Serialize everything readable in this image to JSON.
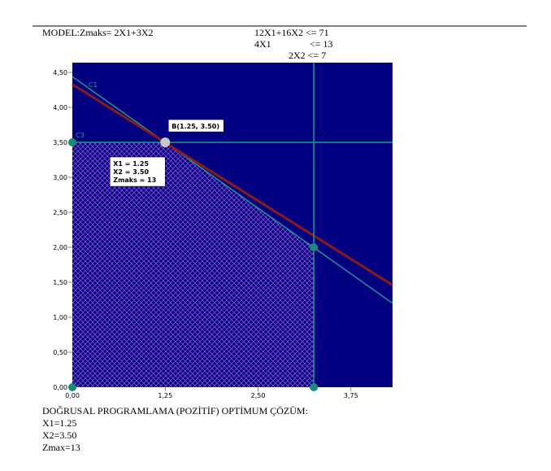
{
  "header": {
    "model": "MODEL:",
    "objective": "Zmaks= 2X1+3X2",
    "constraints": [
      "12X1+16X2 <= 71",
      "4X1",
      "<= 13",
      "2X2 <= 7"
    ]
  },
  "chart_data": {
    "type": "line",
    "xlim": [
      0,
      4.31
    ],
    "ylim": [
      0,
      4.64
    ],
    "xticks": [
      {
        "value": 0,
        "label": "0,00"
      },
      {
        "value": 1.25,
        "label": "1,25"
      },
      {
        "value": 2.5,
        "label": "2,50"
      },
      {
        "value": 3.75,
        "label": "3,75"
      }
    ],
    "yticks": [
      {
        "value": 0,
        "label": "0,00"
      },
      {
        "value": 0.5,
        "label": "0,50"
      },
      {
        "value": 1,
        "label": "1,00"
      },
      {
        "value": 1.5,
        "label": "1,50"
      },
      {
        "value": 2,
        "label": "2,00"
      },
      {
        "value": 2.5,
        "label": "2,50"
      },
      {
        "value": 3,
        "label": "3,00"
      },
      {
        "value": 3.5,
        "label": "3,50"
      },
      {
        "value": 4,
        "label": "4,00"
      },
      {
        "value": 4.5,
        "label": "4,50"
      }
    ],
    "background": "#000080",
    "region": {
      "color": "#8a4fd0",
      "x": [
        0,
        0,
        1.25,
        3.25,
        3.25
      ],
      "values": [
        0,
        3.5,
        3.5,
        2,
        0
      ]
    },
    "series": [
      {
        "name": "C1",
        "color": "#1a9a8a",
        "x": [
          0,
          4.31
        ],
        "values": [
          4.44,
          1.2
        ]
      },
      {
        "color": "#8b1a1a",
        "x": [
          0,
          4.31
        ],
        "values": [
          4.33,
          1.46
        ]
      },
      {
        "name": "C3",
        "color": "#1a9a8a",
        "x": [
          0,
          4.31
        ],
        "values": [
          3.5,
          3.5
        ]
      },
      {
        "color": "#1a9a8a",
        "x": [
          3.25,
          3.25
        ],
        "values": [
          0,
          4.64
        ]
      }
    ],
    "points": {
      "color": "#1a8a7a",
      "x": [
        0,
        0,
        3.25,
        3.25
      ],
      "values": [
        0,
        3.5,
        0,
        2
      ]
    },
    "optimum": {
      "color": "#c8c8c8",
      "x": 1.25,
      "value": 3.5,
      "label": "B(1.25, 3.50)",
      "box": [
        "X1 = 1.25",
        "X2 = 3.50",
        "Zmaks = 13"
      ]
    }
  },
  "result": {
    "title": "DOĞRUSAL PROGRAMLAMA (POZİTİF) OPTİMUM ÇÖZÜM:",
    "lines": [
      "X1=1.25",
      "X2=3.50",
      "Zmax=13"
    ]
  }
}
